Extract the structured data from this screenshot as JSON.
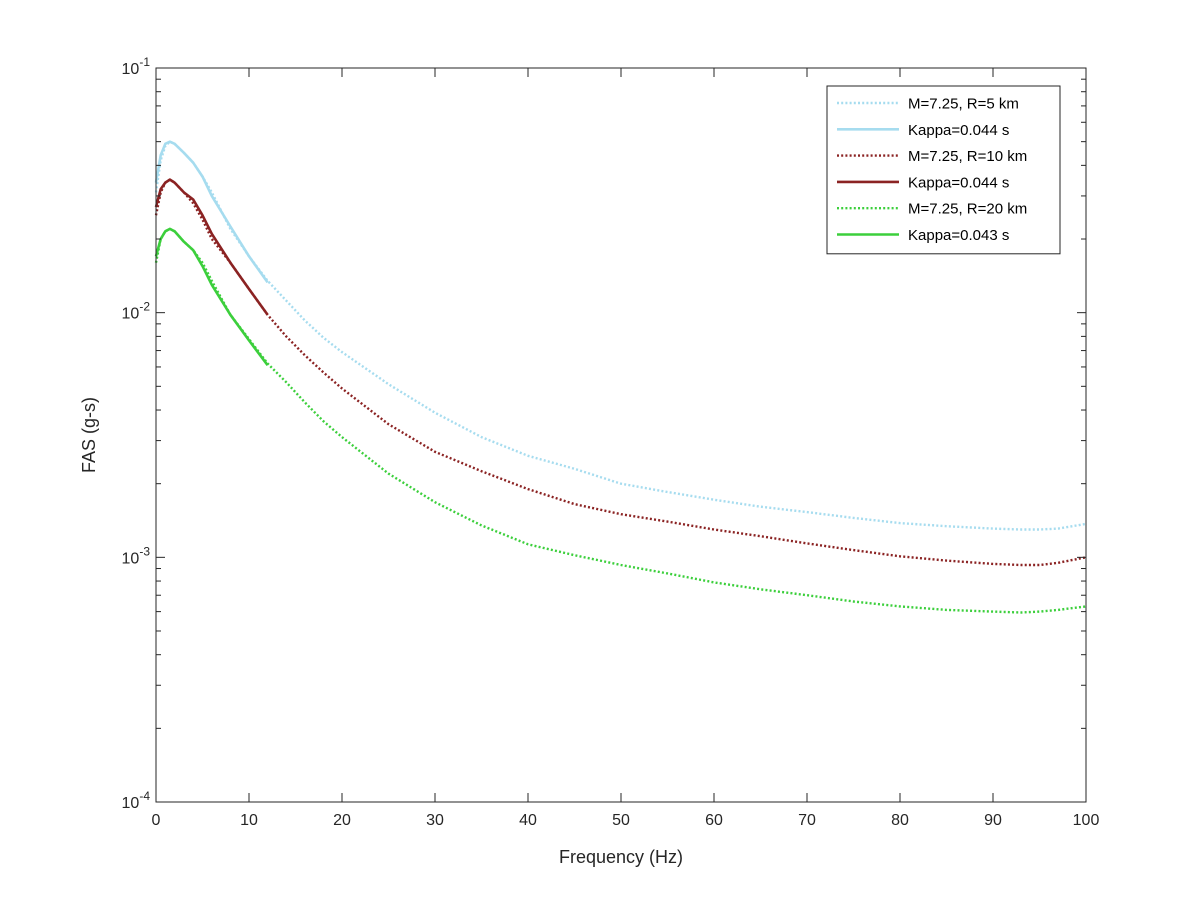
{
  "chart_data": {
    "type": "line",
    "title": "",
    "xlabel": "Frequency (Hz)",
    "ylabel": "FAS (g-s)",
    "xlim": [
      0,
      100
    ],
    "ylim": [
      0.0001,
      0.1
    ],
    "yscale": "log",
    "grid": false,
    "legend_placement": "top-right",
    "x_ticks": [
      {
        "value": 0,
        "label": "0"
      },
      {
        "value": 10,
        "label": "10"
      },
      {
        "value": 20,
        "label": "20"
      },
      {
        "value": 30,
        "label": "30"
      },
      {
        "value": 40,
        "label": "40"
      },
      {
        "value": 50,
        "label": "50"
      },
      {
        "value": 60,
        "label": "60"
      },
      {
        "value": 70,
        "label": "70"
      },
      {
        "value": 80,
        "label": "80"
      },
      {
        "value": 90,
        "label": "90"
      },
      {
        "value": 100,
        "label": "100"
      }
    ],
    "y_ticks": [
      {
        "value": 0.0001,
        "base": "10",
        "exp": "-4"
      },
      {
        "value": 0.001,
        "base": "10",
        "exp": "-3"
      },
      {
        "value": 0.01,
        "base": "10",
        "exp": "-2"
      },
      {
        "value": 0.1,
        "base": "10",
        "exp": "-1"
      }
    ],
    "series": [
      {
        "name": "M=7.25, R=5 km",
        "color": "#a6dcef",
        "style": "dotted",
        "x": [
          0,
          0.5,
          1,
          1.5,
          2,
          3,
          4,
          5,
          6,
          8,
          10,
          12,
          14,
          16,
          18,
          20,
          25,
          30,
          35,
          40,
          45,
          50,
          55,
          60,
          65,
          70,
          75,
          80,
          85,
          90,
          93,
          95,
          97,
          100
        ],
        "y": [
          0.031,
          0.042,
          0.048,
          0.05,
          0.049,
          0.045,
          0.041,
          0.036,
          0.031,
          0.022,
          0.017,
          0.0135,
          0.0112,
          0.0093,
          0.0079,
          0.0069,
          0.0051,
          0.0039,
          0.0031,
          0.0026,
          0.0023,
          0.002,
          0.00185,
          0.00172,
          0.00161,
          0.00153,
          0.00145,
          0.00138,
          0.00134,
          0.00131,
          0.0013,
          0.0013,
          0.00131,
          0.00137
        ]
      },
      {
        "name": "Kappa=0.044 s",
        "color": "#a6dcef",
        "style": "solid",
        "x": [
          0,
          0.5,
          1,
          1.5,
          2,
          3,
          4,
          5,
          6,
          8,
          10,
          12
        ],
        "y": [
          0.034,
          0.044,
          0.049,
          0.05,
          0.049,
          0.045,
          0.041,
          0.036,
          0.03,
          0.0225,
          0.017,
          0.0133
        ]
      },
      {
        "name": "M=7.25, R=10 km",
        "color": "#8b2323",
        "style": "dotted",
        "x": [
          0,
          0.5,
          1,
          1.5,
          2,
          3,
          4,
          5,
          6,
          8,
          10,
          12,
          14,
          16,
          18,
          20,
          25,
          30,
          35,
          40,
          45,
          50,
          55,
          60,
          65,
          70,
          75,
          80,
          85,
          90,
          93,
          95,
          97,
          100
        ],
        "y": [
          0.025,
          0.031,
          0.034,
          0.035,
          0.034,
          0.031,
          0.028,
          0.024,
          0.02,
          0.016,
          0.0125,
          0.0098,
          0.008,
          0.0067,
          0.0057,
          0.0049,
          0.0035,
          0.0027,
          0.00225,
          0.0019,
          0.00165,
          0.0015,
          0.0014,
          0.0013,
          0.00122,
          0.00114,
          0.00107,
          0.00101,
          0.00097,
          0.00094,
          0.00093,
          0.00093,
          0.00095,
          0.001
        ]
      },
      {
        "name": "Kappa=0.044 s",
        "color": "#8b2323",
        "style": "solid",
        "x": [
          0,
          0.5,
          1,
          1.5,
          2,
          3,
          4,
          5,
          6,
          8,
          10,
          12
        ],
        "y": [
          0.027,
          0.032,
          0.034,
          0.035,
          0.034,
          0.031,
          0.029,
          0.025,
          0.021,
          0.016,
          0.0125,
          0.0098
        ]
      },
      {
        "name": "M=7.25, R=20 km",
        "color": "#3ccf3c",
        "style": "dotted",
        "x": [
          0,
          0.5,
          1,
          1.5,
          2,
          3,
          4,
          5,
          6,
          8,
          10,
          12,
          14,
          16,
          18,
          20,
          25,
          30,
          35,
          40,
          45,
          50,
          55,
          60,
          65,
          70,
          75,
          80,
          85,
          90,
          93,
          95,
          97,
          100
        ],
        "y": [
          0.016,
          0.02,
          0.0215,
          0.022,
          0.0215,
          0.0195,
          0.018,
          0.016,
          0.0135,
          0.0098,
          0.0078,
          0.0062,
          0.0052,
          0.0043,
          0.0036,
          0.0031,
          0.0022,
          0.00168,
          0.00135,
          0.00113,
          0.00102,
          0.00093,
          0.00086,
          0.00079,
          0.00074,
          0.0007,
          0.00066,
          0.00063,
          0.00061,
          0.0006,
          0.000595,
          0.0006,
          0.00061,
          0.00063
        ]
      },
      {
        "name": "Kappa=0.043 s",
        "color": "#3ccf3c",
        "style": "solid",
        "x": [
          0,
          0.5,
          1,
          1.5,
          2,
          3,
          4,
          5,
          6,
          8,
          10,
          12
        ],
        "y": [
          0.017,
          0.02,
          0.0215,
          0.022,
          0.0215,
          0.0195,
          0.018,
          0.0155,
          0.013,
          0.0098,
          0.0077,
          0.0061
        ]
      }
    ]
  }
}
